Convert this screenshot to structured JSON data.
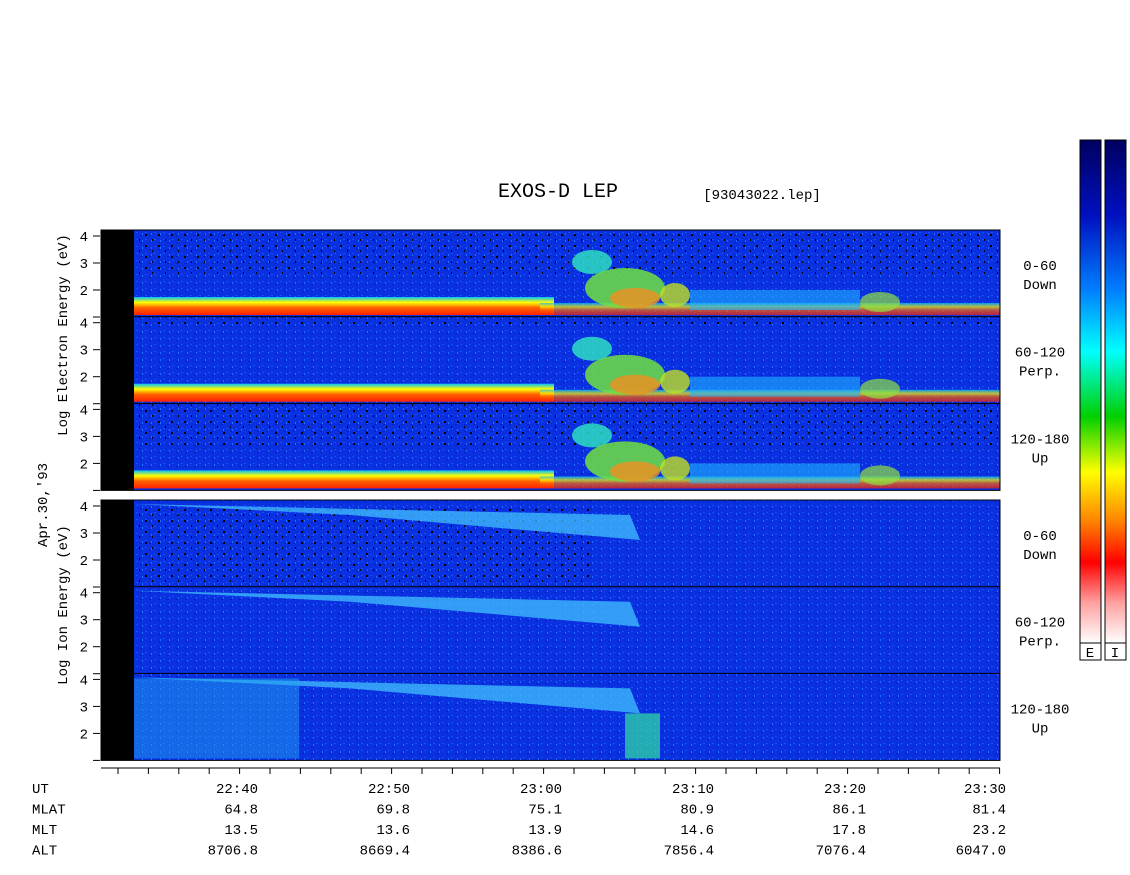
{
  "title": "EXOS-D LEP",
  "file": "[93043022.lep]",
  "date": "Apr.30,'93",
  "electron": {
    "ylabel": "Log  Electron  Energy (eV)",
    "panels": [
      {
        "range": "0-60",
        "dir": "Down"
      },
      {
        "range": "60-120",
        "dir": "Perp."
      },
      {
        "range": "120-180",
        "dir": "Up"
      }
    ]
  },
  "ion": {
    "ylabel": "Log  Ion  Energy (eV)",
    "panels": [
      {
        "range": "0-60",
        "dir": "Down"
      },
      {
        "range": "60-120",
        "dir": "Perp."
      },
      {
        "range": "120-180",
        "dir": "Up"
      }
    ]
  },
  "yticks": [
    4,
    3,
    2
  ],
  "time_axis": {
    "rows": [
      [
        "UT",
        "22:40",
        "22:50",
        "23:00",
        "23:10",
        "23:20",
        "23:30"
      ],
      [
        "MLAT",
        "64.8",
        "69.8",
        "75.1",
        "80.9",
        "86.1",
        "81.4"
      ],
      [
        "MLT",
        "13.5",
        "13.6",
        "13.9",
        "14.6",
        "17.8",
        "23.2"
      ],
      [
        "ALT",
        "8706.8",
        "8669.4",
        "8386.6",
        "7856.4",
        "7076.4",
        "6047.0"
      ]
    ]
  },
  "colorbar": {
    "labels": [
      "E",
      "I"
    ]
  }
}
